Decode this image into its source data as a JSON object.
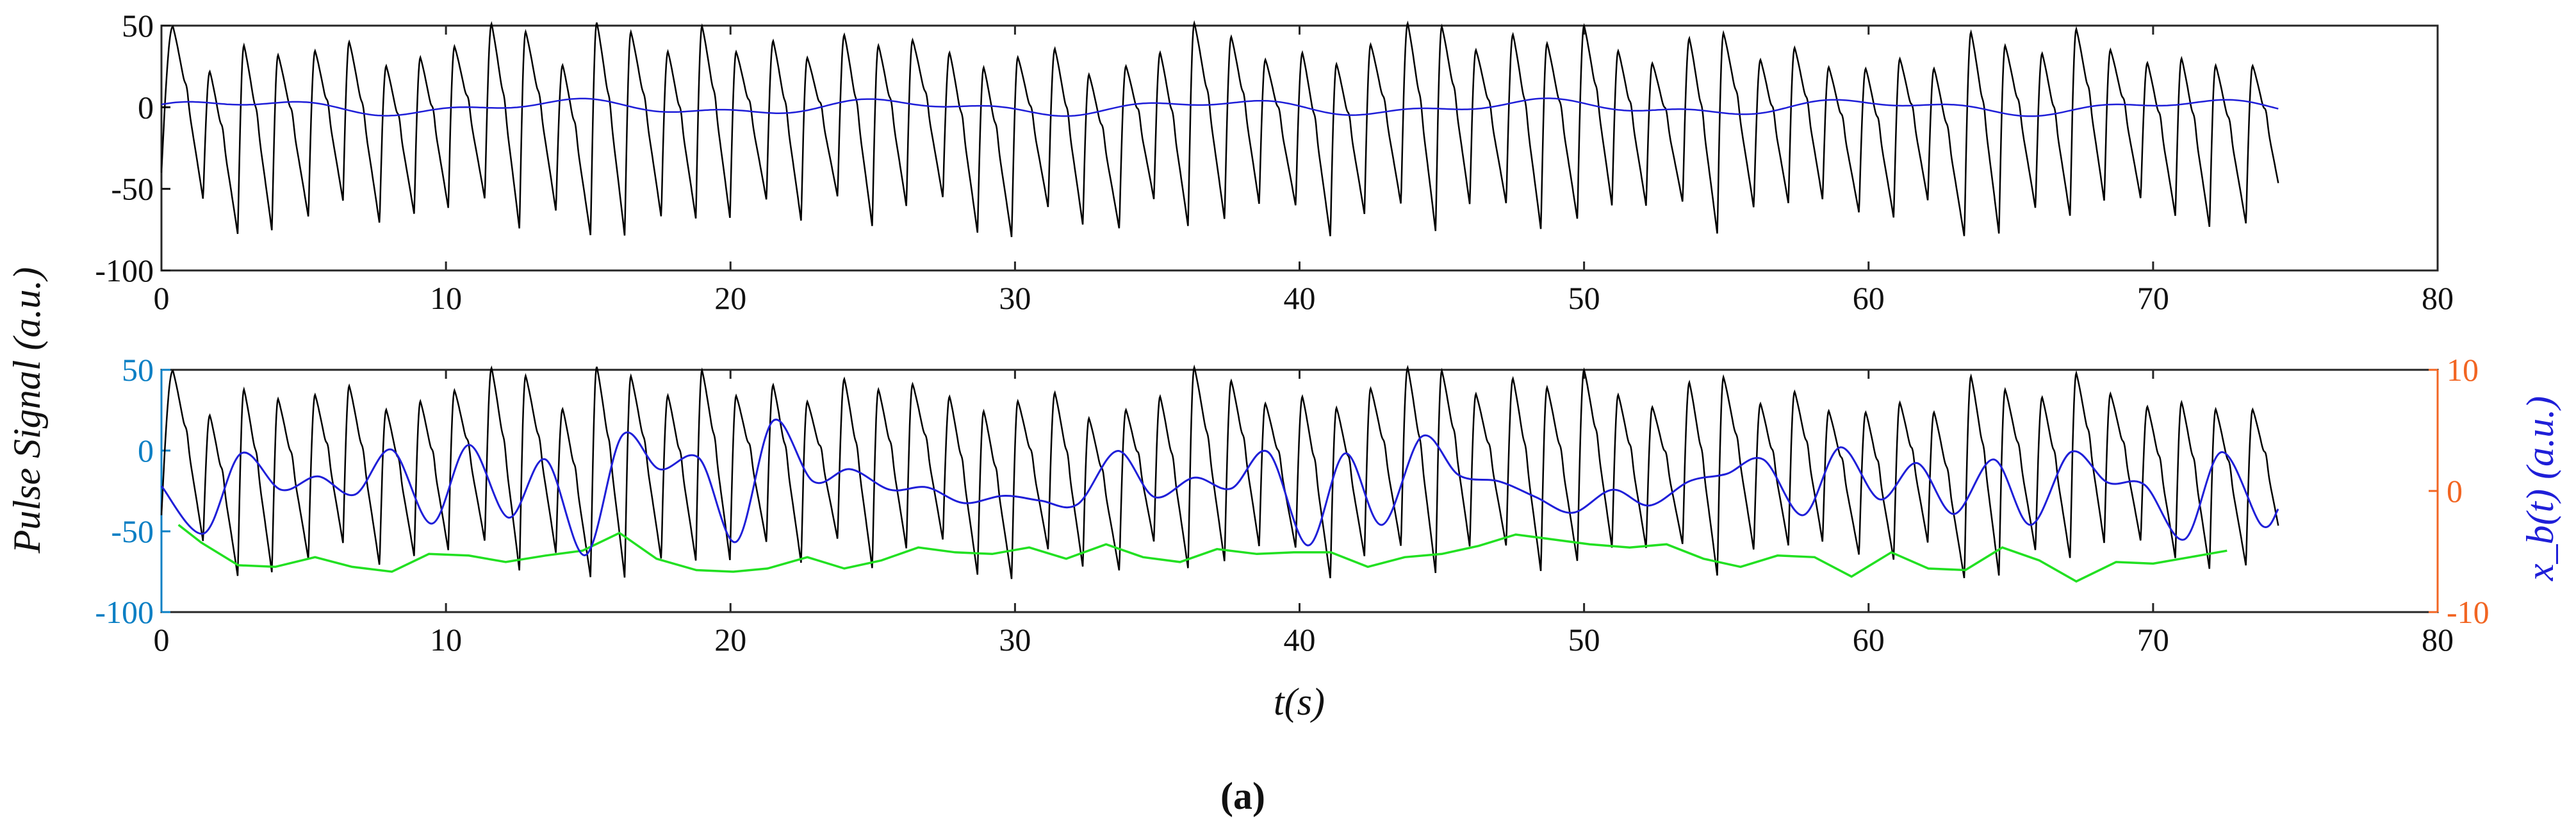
{
  "figure_caption": "(a)",
  "shared_ylabel": "Pulse Signal (a.u.)",
  "chart_data": [
    {
      "type": "line",
      "panel": "top",
      "xlim": [
        0,
        80
      ],
      "ylim": [
        -100,
        50
      ],
      "xticks": [
        0,
        10,
        20,
        30,
        40,
        50,
        60,
        70,
        80
      ],
      "yticks": [
        50,
        0,
        -50,
        -100
      ],
      "xlabel": "",
      "ylabel": "Pulse Signal (a.u.)",
      "grid": false,
      "beat_period_s": 1.24,
      "duration_s": 74.4,
      "series": [
        {
          "id": "pulse",
          "color": "#000000",
          "peak_range": [
            20,
            52
          ],
          "trough_range": [
            -80,
            -55
          ],
          "peak_times": [
            0.4,
            1.7,
            2.9,
            4.1,
            5.4,
            6.6,
            7.9,
            9.1,
            10.3,
            11.6,
            12.8,
            14.1,
            15.3,
            16.5,
            17.8,
            19.0,
            20.2,
            21.5,
            22.7,
            24.0,
            25.2,
            26.4,
            27.7,
            28.9,
            30.1,
            31.4,
            32.6,
            33.9,
            35.1,
            36.3,
            37.6,
            38.8,
            40.1,
            41.3,
            42.5,
            43.8,
            45.0,
            46.2,
            47.5,
            48.7,
            50.0,
            51.2,
            52.4,
            53.7,
            54.9,
            56.2,
            57.4,
            58.6,
            59.9,
            61.1,
            62.3,
            63.6,
            64.8,
            66.1,
            67.3,
            68.5,
            69.8,
            71.0,
            72.2,
            73.5
          ]
        },
        {
          "id": "baseline",
          "color": "#1f1fd8",
          "note_values": "small oscillation",
          "range": [
            -7,
            6
          ]
        }
      ]
    },
    {
      "type": "line",
      "panel": "bottom",
      "xlim": [
        0,
        80
      ],
      "ylim_left": [
        -100,
        50
      ],
      "ylim_right": [
        -10,
        10
      ],
      "xticks": [
        0,
        10,
        20,
        30,
        40,
        50,
        60,
        70,
        80
      ],
      "yticks_left": [
        50,
        0,
        -50,
        -100
      ],
      "yticks_right": [
        10,
        0,
        -10
      ],
      "xlabel": "t(s)",
      "ylabel_right": "x_b(t) (a.u.)",
      "left_axis_color": "#0a7fc4",
      "right_axis_color": "#f26522",
      "grid": false,
      "series": [
        {
          "id": "pulse",
          "axis": "left",
          "color": "#000000"
        },
        {
          "id": "trough_envelope",
          "axis": "left",
          "color": "#22e022",
          "x": [
            0.6,
            1.4,
            2.7,
            4.0,
            5.4,
            6.7,
            8.1,
            9.4,
            10.8,
            12.1,
            13.5,
            14.8,
            16.1,
            17.4,
            18.8,
            20.1,
            21.3,
            22.7,
            24.0,
            25.3,
            26.6,
            27.9,
            29.2,
            30.5,
            31.8,
            33.2,
            34.5,
            35.8,
            37.1,
            38.5,
            39.8,
            41.1,
            42.4,
            43.7,
            45.0,
            46.3,
            47.6,
            48.9,
            50.2,
            51.6,
            52.9,
            54.2,
            55.5,
            56.8,
            58.1,
            59.4,
            60.8,
            62.1,
            63.4,
            64.7,
            66.0,
            67.3,
            68.7,
            70.0,
            71.3,
            72.6
          ],
          "y": [
            -46,
            -57,
            -71,
            -72,
            -66,
            -72,
            -75,
            -64,
            -65,
            -69,
            -65,
            -62,
            -51,
            -67,
            -74,
            -75,
            -73,
            -66,
            -73,
            -68,
            -60,
            -63,
            -64,
            -60,
            -67,
            -58,
            -66,
            -69,
            -61,
            -64,
            -63,
            -63,
            -72,
            -66,
            -64,
            -59,
            -52,
            -55,
            -58,
            -60,
            -58,
            -67,
            -72,
            -65,
            -66,
            -78,
            -63,
            -73,
            -74,
            -60,
            -68,
            -81,
            -69,
            -70,
            -66,
            -62
          ]
        },
        {
          "id": "x_b",
          "axis": "right",
          "color": "#1f1fd8",
          "x": [
            0,
            1.5,
            2.8,
            4.2,
            5.5,
            6.8,
            8.1,
            9.5,
            10.8,
            12.2,
            13.5,
            14.9,
            16.2,
            17.5,
            18.9,
            20.2,
            21.5,
            22.9,
            24.2,
            25.6,
            26.9,
            28.2,
            29.6,
            30.9,
            32.2,
            33.6,
            34.9,
            36.3,
            37.6,
            38.9,
            40.3,
            41.6,
            42.9,
            44.3,
            45.6,
            47.0,
            48.3,
            49.6,
            51.0,
            52.3,
            53.7,
            55.0,
            56.3,
            57.7,
            59.0,
            60.4,
            61.7,
            63.0,
            64.4,
            65.7,
            67.1,
            68.4,
            69.7,
            71.1,
            72.4,
            73.8,
            74.4
          ],
          "y": [
            0.4,
            -3.5,
            3.1,
            0.1,
            1.2,
            -0.3,
            3.4,
            -2.7,
            3.8,
            -2.2,
            2.6,
            -5.3,
            4.6,
            1.8,
            2.7,
            -4.2,
            5.8,
            0.8,
            1.8,
            0.1,
            0.3,
            -1.0,
            -0.4,
            -0.8,
            -1.1,
            3.3,
            -0.5,
            1.1,
            0.2,
            3.2,
            -4.5,
            3.1,
            -2.8,
            4.5,
            1.3,
            0.8,
            -0.5,
            -1.8,
            0.1,
            -1.2,
            0.8,
            1.4,
            2.6,
            -2.0,
            3.6,
            -0.7,
            2.3,
            -1.9,
            2.6,
            -2.8,
            3.2,
            0.7,
            0.5,
            -4.0,
            3.2,
            -2.8,
            -1.5
          ]
        }
      ]
    }
  ]
}
